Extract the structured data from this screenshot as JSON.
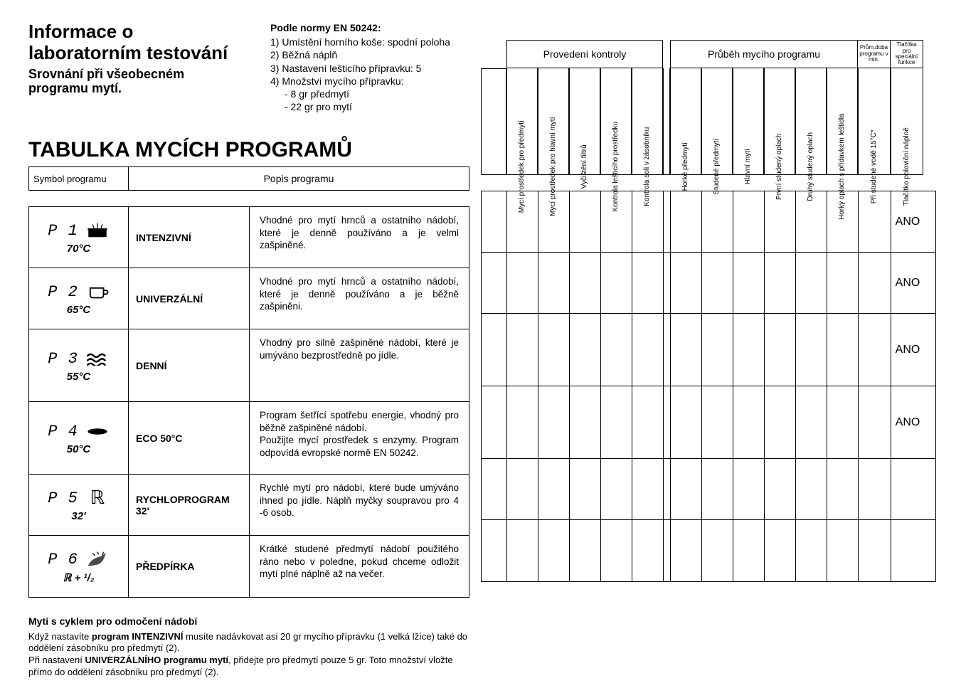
{
  "header": {
    "info_title": "Informace o laboratorním testování",
    "info_sub": "Srovnání při všeobecném programu mytí.",
    "norm_title": "Podle normy EN 50242:",
    "norm_lines": [
      "1) Umístění horního koše: spodní poloha",
      "2) Běžná náplň",
      "3) Nastavení lešticího přípravku: 5",
      "4) Množství mycího přípravku:"
    ],
    "norm_indent": [
      "- 8 gr předmytí",
      "- 22 gr pro mytí"
    ]
  },
  "section_title": "TABULKA MYCÍCH PROGRAMŮ",
  "left_header": {
    "symbol": "Symbol programu",
    "popis": "Popis programu"
  },
  "programs": [
    {
      "code": "P 1",
      "temp": "70°C",
      "icon": "pot",
      "name": "INTENZIVNÍ",
      "desc": "Vhodné pro mytí hrnců a ostatního nádobí, které je denně používáno a je velmi zašpiněné.",
      "ano": "ANO"
    },
    {
      "code": "P 2",
      "temp": "65°C",
      "icon": "cup",
      "name": "UNIVERZÁLNÍ",
      "desc": "Vhodné pro mytí hrnců a ostatního nádobí, které je denně používáno a je běžně zašpiněni.",
      "ano": "ANO"
    },
    {
      "code": "P 3",
      "temp": "55°C",
      "icon": "waves",
      "name": "DENNÍ",
      "desc": "Vhodný pro silně zašpiněné nádobí, které je umýváno bezprostředně po jídle.",
      "ano": "ANO",
      "tall": true
    },
    {
      "code": "P 4",
      "temp": "50°C",
      "icon": "eco",
      "name": "ECO 50°C",
      "desc": "Program šetřící spotřebu energie, vhodný pro běžně zašpiněné nádobí.\nPoužijte mycí prostředek s enzymy. Program odpovídá evropské normě EN 50242.",
      "ano": "ANO",
      "tall": true
    },
    {
      "code": "P 5",
      "temp": "32'",
      "icon": "rapid",
      "name": "RYCHLOPROGRAM 32'",
      "desc": "Rychlé mytí pro nádobí, které bude umýváno ihned po jídle. Náplň myčky soupravou pro 4 -6 osob.",
      "ano": ""
    },
    {
      "code": "P 6",
      "temp": "ℝ + ¹/₂",
      "icon": "pre",
      "name": "PŘEDPÍRKA",
      "desc": "Krátké studené předmytí nádobí použitého ráno nebo v poledne, pokud chceme odložit mytí plné náplně až na večer.",
      "ano": ""
    }
  ],
  "right_table": {
    "group1": "Provedení kontroly",
    "group2": "Průběh mycího programu",
    "small1": "Prům.doba programu v min.",
    "small2": "Tlačítka pro speciální funkce",
    "vheaders": [
      "Mycí prostředek pro předmytí",
      "Mycí prostředek pro hlavní mytí",
      "Vyčištění filtrů",
      "Kontrola lešticího prostředku",
      "Kontrola soli v zásobníku",
      "Horké předmytí",
      "Studené předmytí",
      "Hlavní mytí",
      "První studený oplach",
      "Druhý studený oplach",
      "Horký oplach s přídavkem leštidla",
      "Při studené vodě 15°C*",
      "Tlačítko poloviční náplně"
    ]
  },
  "footer": {
    "title": "Mytí s cyklem pro odmočení nádobí",
    "line1a": "Když nastavíte ",
    "line1b": "program INTENZIVNÍ",
    "line1c": " musíte nadávkovat asi 20 gr mycího přípravku (1 velká lžíce) také do oddělení zásobníku pro předmytí (2).",
    "line2a": "Při nastavení ",
    "line2b": "UNIVERZÁLNÍHO programu mytí",
    "line2c": ", přidejte pro předmytí pouze 5 gr. Toto množství vložte přímo do oddělení zásobníku pro předmytí (2)."
  },
  "colors": {
    "text": "#000000",
    "bg": "#ffffff",
    "border": "#000000"
  }
}
